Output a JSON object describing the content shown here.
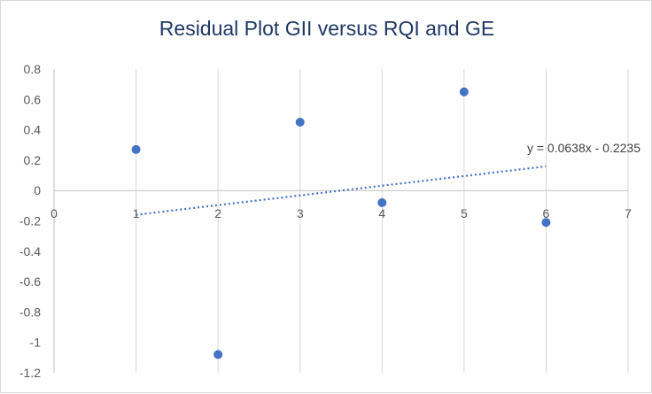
{
  "chart_data": {
    "type": "scatter",
    "title": "Residual Plot GII versus RQI and GE",
    "xlabel": "",
    "ylabel": "",
    "xlim": [
      0,
      7
    ],
    "ylim": [
      -1.2,
      0.8
    ],
    "x_ticks": [
      "0",
      "1",
      "2",
      "3",
      "4",
      "5",
      "6",
      "7"
    ],
    "y_ticks": [
      "0.8",
      "0.6",
      "0.4",
      "0.2",
      "0",
      "-0.2",
      "-0.4",
      "-0.6",
      "-0.8",
      "-1",
      "-1.2"
    ],
    "grid": "vertical",
    "points": [
      {
        "x": 1,
        "y": 0.27
      },
      {
        "x": 2,
        "y": -1.08
      },
      {
        "x": 3,
        "y": 0.45
      },
      {
        "x": 4,
        "y": -0.08
      },
      {
        "x": 5,
        "y": 0.65
      },
      {
        "x": 6,
        "y": -0.21
      }
    ],
    "trendline": {
      "type": "linear",
      "slope": 0.0638,
      "intercept": -0.2235,
      "x_range": [
        1,
        6
      ],
      "equation": "y = 0.0638x - 0.2235"
    },
    "colors": {
      "marker": "#4472c4",
      "trendline": "#4472c4",
      "title": "#1f3864",
      "gridline": "#d9d9d9",
      "axis": "#bfbfbf"
    }
  }
}
